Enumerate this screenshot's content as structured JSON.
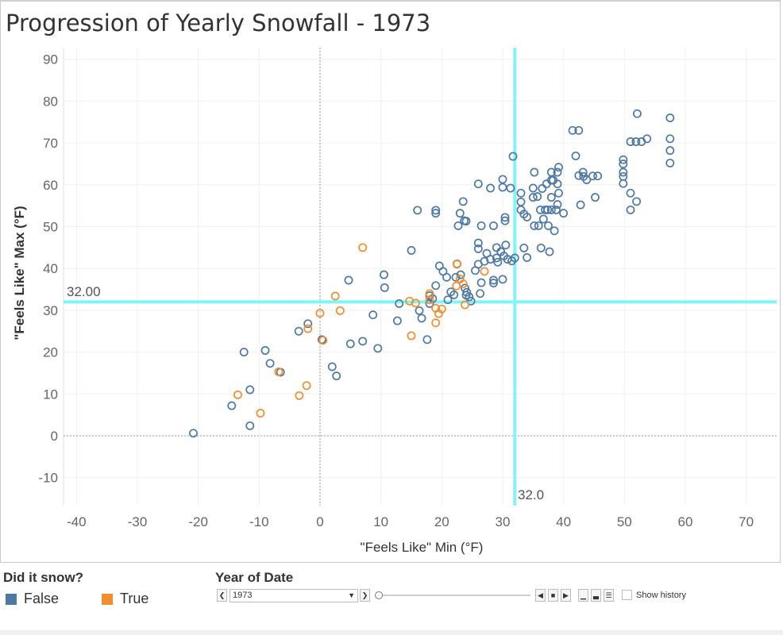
{
  "colors": {
    "false": "#4e79a7",
    "true": "#f28e2b",
    "refline": "#7ff5f5",
    "zero": "#9a9a9a"
  },
  "legend": {
    "title": "Did it snow?",
    "items": [
      {
        "label": "False",
        "color": "#4e79a7"
      },
      {
        "label": "True",
        "color": "#f28e2b"
      }
    ]
  },
  "controls": {
    "title": "Year of Date",
    "selected_year": "1973",
    "show_history_label": "Show history"
  },
  "chart_data": {
    "type": "scatter",
    "title": "Progression of Yearly Snowfall - 1973",
    "xlabel": "\"Feels Like\" Min (°F)",
    "ylabel": "\"Feels Like\" Max (°F)",
    "xlim": [
      -42,
      75
    ],
    "ylim": [
      -15,
      92
    ],
    "xticks": [
      -40,
      -30,
      -20,
      -10,
      0,
      10,
      20,
      30,
      40,
      50,
      60,
      70
    ],
    "yticks": [
      -10,
      0,
      10,
      20,
      30,
      40,
      50,
      60,
      70,
      80,
      90
    ],
    "reference_lines": {
      "x": 32.0,
      "x_label": "32.0",
      "y": 32.0,
      "y_label": "32.00"
    },
    "grid": true,
    "legend_title": "Did it snow?",
    "series": [
      {
        "name": "False",
        "points": [
          [
            -20.8,
            0.6
          ],
          [
            -14.5,
            7.2
          ],
          [
            -12.5,
            20
          ],
          [
            -11.5,
            11
          ],
          [
            -11.5,
            2.4
          ],
          [
            -9,
            20.4
          ],
          [
            -8.2,
            17.3
          ],
          [
            -6.5,
            15.2
          ],
          [
            -3.5,
            25
          ],
          [
            -2,
            26.8
          ],
          [
            0.3,
            23
          ],
          [
            2,
            16.5
          ],
          [
            2.7,
            14.3
          ],
          [
            4.7,
            37.2
          ],
          [
            5,
            22
          ],
          [
            7,
            22.6
          ],
          [
            8.7,
            28.9
          ],
          [
            9.5,
            20.9
          ],
          [
            10.5,
            38.5
          ],
          [
            10.6,
            35.4
          ],
          [
            12.7,
            27.5
          ],
          [
            13,
            31.6
          ],
          [
            15,
            44.3
          ],
          [
            16,
            53.9
          ],
          [
            16.3,
            29.9
          ],
          [
            16.7,
            28.1
          ],
          [
            17.6,
            23
          ],
          [
            18,
            31.6
          ],
          [
            18,
            33.5
          ],
          [
            18.5,
            32.8
          ],
          [
            19,
            35.9
          ],
          [
            19,
            53.9
          ],
          [
            19,
            53.2
          ],
          [
            19.6,
            40.6
          ],
          [
            20.2,
            39.3
          ],
          [
            20.8,
            37.9
          ],
          [
            21,
            32.5
          ],
          [
            21.5,
            34.4
          ],
          [
            22,
            33.7
          ],
          [
            22.3,
            37.9
          ],
          [
            22.5,
            41.1
          ],
          [
            22.7,
            50.2
          ],
          [
            23,
            53.2
          ],
          [
            23.1,
            38.5
          ],
          [
            23.5,
            56
          ],
          [
            23.7,
            51.4
          ],
          [
            23.8,
            35.3
          ],
          [
            24,
            51.3
          ],
          [
            24,
            33.6
          ],
          [
            24.1,
            34.3
          ],
          [
            24.5,
            33.2
          ],
          [
            24.8,
            32.2
          ],
          [
            25.5,
            39.5
          ],
          [
            26,
            60.2
          ],
          [
            26,
            46.1
          ],
          [
            26,
            44.7
          ],
          [
            26,
            41
          ],
          [
            26.3,
            34
          ],
          [
            26.5,
            36.6
          ],
          [
            26.5,
            50.2
          ],
          [
            27,
            41.7
          ],
          [
            27.4,
            43.6
          ],
          [
            28,
            42.2
          ],
          [
            28,
            59.2
          ],
          [
            28.5,
            50.2
          ],
          [
            28.5,
            37.2
          ],
          [
            28.5,
            36.5
          ],
          [
            29,
            45
          ],
          [
            29,
            42.5
          ],
          [
            29.2,
            41.5
          ],
          [
            29.7,
            44
          ],
          [
            30,
            59.4
          ],
          [
            30,
            61.3
          ],
          [
            30,
            37.4
          ],
          [
            30.2,
            43
          ],
          [
            30.4,
            51.4
          ],
          [
            30.4,
            52.2
          ],
          [
            30.5,
            45.6
          ],
          [
            30.8,
            42.2
          ],
          [
            31.3,
            59.2
          ],
          [
            31.5,
            41.8
          ],
          [
            31.7,
            66.8
          ],
          [
            32,
            42.5
          ],
          [
            33,
            54
          ],
          [
            33,
            55.9
          ],
          [
            33,
            58
          ],
          [
            33.5,
            44.9
          ],
          [
            33.5,
            53
          ],
          [
            34,
            52.3
          ],
          [
            34,
            42.6
          ],
          [
            35,
            57
          ],
          [
            35,
            59.2
          ],
          [
            35.2,
            50.2
          ],
          [
            35.2,
            63
          ],
          [
            35.7,
            57.2
          ],
          [
            35.9,
            50.2
          ],
          [
            36.2,
            54
          ],
          [
            36.3,
            44.9
          ],
          [
            36.5,
            59.1
          ],
          [
            36.7,
            51.8
          ],
          [
            37,
            54
          ],
          [
            37.2,
            60.2
          ],
          [
            37.4,
            54
          ],
          [
            37.5,
            50.2
          ],
          [
            37.7,
            44
          ],
          [
            38,
            63
          ],
          [
            38,
            57
          ],
          [
            38,
            54
          ],
          [
            38,
            61.1
          ],
          [
            38.3,
            61.1
          ],
          [
            38.5,
            49
          ],
          [
            38.8,
            54
          ],
          [
            39,
            55.3
          ],
          [
            39,
            60.2
          ],
          [
            39,
            63
          ],
          [
            39.2,
            64.2
          ],
          [
            39.2,
            58
          ],
          [
            40,
            53.2
          ],
          [
            41.5,
            73
          ],
          [
            42,
            66.9
          ],
          [
            42.5,
            73
          ],
          [
            42.5,
            62.2
          ],
          [
            42.8,
            55.2
          ],
          [
            43.2,
            63
          ],
          [
            43.3,
            62
          ],
          [
            43.8,
            61.2
          ],
          [
            44.8,
            62.1
          ],
          [
            45.2,
            57
          ],
          [
            45.6,
            62.1
          ],
          [
            49.8,
            66
          ],
          [
            49.8,
            65
          ],
          [
            49.8,
            63
          ],
          [
            49.8,
            62
          ],
          [
            49.8,
            60.3
          ],
          [
            51,
            70.3
          ],
          [
            51,
            58
          ],
          [
            51,
            54
          ],
          [
            51.9,
            70.3
          ],
          [
            52,
            56
          ],
          [
            52.1,
            77
          ],
          [
            52.8,
            70.3
          ],
          [
            53.7,
            71
          ],
          [
            57.5,
            76
          ],
          [
            57.5,
            71
          ],
          [
            57.5,
            68.2
          ],
          [
            57.5,
            65.2
          ]
        ]
      },
      {
        "name": "True",
        "points": [
          [
            -13.5,
            9.8
          ],
          [
            -9.8,
            5.4
          ],
          [
            -6.8,
            15.3
          ],
          [
            -3.4,
            9.6
          ],
          [
            -2.2,
            12
          ],
          [
            -2,
            25.6
          ],
          [
            0,
            29.3
          ],
          [
            0.5,
            22.8
          ],
          [
            2.5,
            33.4
          ],
          [
            3.3,
            29.9
          ],
          [
            7,
            45
          ],
          [
            14.7,
            32.2
          ],
          [
            15,
            23.9
          ],
          [
            15.7,
            31.7
          ],
          [
            18,
            32.5
          ],
          [
            18,
            34
          ],
          [
            19,
            30.5
          ],
          [
            19,
            27
          ],
          [
            19.5,
            29.2
          ],
          [
            20,
            30.3
          ],
          [
            22.4,
            35.8
          ],
          [
            23,
            37.5
          ],
          [
            23.5,
            36.3
          ],
          [
            23.8,
            31.3
          ],
          [
            27,
            39.3
          ],
          [
            22.5,
            41
          ]
        ]
      }
    ]
  }
}
